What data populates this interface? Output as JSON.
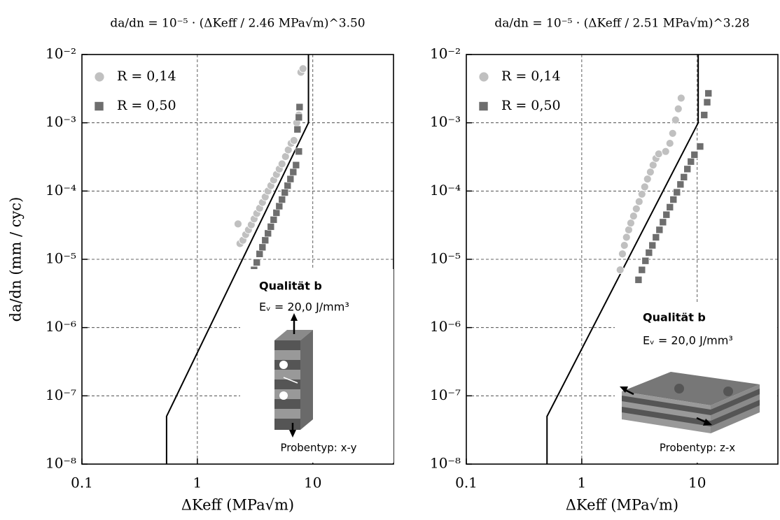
{
  "chart_data": [
    {
      "type": "scatter",
      "title": "da/dn = 10⁻⁵ · (ΔKeff / 2.46 MPa√m)^3.50",
      "xlabel": "ΔKeff (MPa√m)",
      "ylabel": "da/dn (mm / cyc)",
      "xscale": "log",
      "yscale": "log",
      "xlim": [
        0.1,
        50
      ],
      "ylim": [
        1e-08,
        0.01
      ],
      "xticks": [
        0.1,
        1,
        10
      ],
      "yticks": [
        {
          "value": 1e-08,
          "label": "10⁻⁸"
        },
        {
          "value": 1e-07,
          "label": "10⁻⁷"
        },
        {
          "value": 1e-06,
          "label": "10⁻⁶"
        },
        {
          "value": 1e-05,
          "label": "10⁻⁵"
        },
        {
          "value": 0.0001,
          "label": "10⁻⁴"
        },
        {
          "value": 0.001,
          "label": "10⁻³"
        },
        {
          "value": 0.01,
          "label": "10⁻²"
        }
      ],
      "grid": true,
      "legend": "upper-left",
      "series": [
        {
          "name": "R = 0,14",
          "color": "#c0c0c0",
          "marker": "circle",
          "x": [
            2.25,
            2.34,
            2.48,
            2.62,
            2.77,
            2.93,
            3.1,
            3.27,
            3.46,
            3.66,
            3.87,
            4.09,
            4.33,
            4.58,
            4.84,
            5.12,
            5.41,
            5.8,
            6.13,
            6.49,
            6.86,
            7.26,
            7.57,
            7.89,
            8.22
          ],
          "values": [
            3.3e-05,
            1.7e-05,
            1.9e-05,
            2.3e-05,
            2.7e-05,
            3.2e-05,
            3.9e-05,
            4.7e-05,
            5.6e-05,
            6.8e-05,
            8.2e-05,
            0.0001,
            0.00012,
            0.000145,
            0.000175,
            0.00021,
            0.00025,
            0.00032,
            0.0004,
            0.0005,
            0.00055,
            0.001,
            0.0013,
            0.0055,
            0.0062
          ]
        },
        {
          "name": "R = 0,50",
          "color": "#6e6e6e",
          "marker": "square",
          "x": [
            3.1,
            3.27,
            3.46,
            3.66,
            3.87,
            4.09,
            4.33,
            4.58,
            4.84,
            5.12,
            5.41,
            5.72,
            6.05,
            6.4,
            6.77,
            7.16,
            7.57,
            7.36,
            7.57,
            7.68
          ],
          "values": [
            7e-06,
            9e-06,
            1.2e-05,
            1.5e-05,
            1.9e-05,
            2.4e-05,
            3e-05,
            3.8e-05,
            4.8e-05,
            6e-05,
            7.5e-05,
            9.5e-05,
            0.00012,
            0.00015,
            0.00019,
            0.00024,
            0.00038,
            0.0008,
            0.0012,
            0.0017
          ]
        }
      ],
      "model_line": {
        "color": "#000000",
        "x": [
          0.541,
          0.541,
          9.17,
          9.17
        ],
        "values": [
          1e-08,
          5e-08,
          0.001,
          0.01
        ]
      },
      "inset": {
        "title": "Qualität b",
        "energy": "Eᵥ = 20,0 J/mm³",
        "specimen": "Probentyp: x-y"
      }
    },
    {
      "type": "scatter",
      "title": "da/dn = 10⁻⁵ · (ΔKeff / 2.51 MPa√m)^3.28",
      "xlabel": "ΔKeff (MPa√m)",
      "xscale": "log",
      "yscale": "log",
      "xlim": [
        0.1,
        50
      ],
      "ylim": [
        1e-08,
        0.01
      ],
      "xticks": [
        0.1,
        1,
        10
      ],
      "yticks": [
        {
          "value": 1e-08,
          "label": "10⁻⁸"
        },
        {
          "value": 1e-07,
          "label": "10⁻⁷"
        },
        {
          "value": 1e-06,
          "label": "10⁻⁶"
        },
        {
          "value": 1e-05,
          "label": "10⁻⁵"
        },
        {
          "value": 0.0001,
          "label": "10⁻⁴"
        },
        {
          "value": 0.001,
          "label": "10⁻³"
        },
        {
          "value": 0.01,
          "label": "10⁻²"
        }
      ],
      "grid": true,
      "legend": "upper-left",
      "series": [
        {
          "name": "R = 0,14",
          "color": "#c0c0c0",
          "marker": "circle",
          "x": [
            2.15,
            2.25,
            2.34,
            2.44,
            2.55,
            2.66,
            2.81,
            2.97,
            3.14,
            3.32,
            3.51,
            3.71,
            3.93,
            4.15,
            4.39,
            4.64,
            5.33,
            5.8,
            6.13,
            6.49,
            6.86,
            7.26
          ],
          "values": [
            7e-06,
            1.2e-05,
            1.6e-05,
            2.1e-05,
            2.7e-05,
            3.4e-05,
            4.3e-05,
            5.5e-05,
            7e-05,
            9e-05,
            0.000115,
            0.00015,
            0.00019,
            0.00024,
            0.0003,
            0.00035,
            0.00038,
            0.0005,
            0.0007,
            0.0011,
            0.0016,
            0.0023
          ]
        },
        {
          "name": "R = 0,50",
          "color": "#6e6e6e",
          "marker": "square",
          "x": [
            3.1,
            3.32,
            3.56,
            3.82,
            4.09,
            4.39,
            4.71,
            5.05,
            5.41,
            5.8,
            6.22,
            6.67,
            7.16,
            7.67,
            8.22,
            8.82,
            9.46,
            10.6,
            11.5,
            12.2,
            12.5
          ],
          "values": [
            5e-06,
            7e-06,
            9.5e-06,
            1.25e-05,
            1.6e-05,
            2.1e-05,
            2.7e-05,
            3.5e-05,
            4.5e-05,
            5.8e-05,
            7.5e-05,
            9.6e-05,
            0.000125,
            0.00016,
            0.00021,
            0.00027,
            0.00034,
            0.00045,
            0.0013,
            0.002,
            0.0027
          ]
        }
      ],
      "model_line": {
        "color": "#000000",
        "x": [
          0.5,
          0.5,
          10.2,
          10.2
        ],
        "values": [
          1e-08,
          5e-08,
          0.001,
          0.01
        ]
      },
      "inset": {
        "title": "Qualität b",
        "energy": "Eᵥ = 20,0 J/mm³",
        "specimen": "Probentyp: z-x"
      }
    }
  ]
}
